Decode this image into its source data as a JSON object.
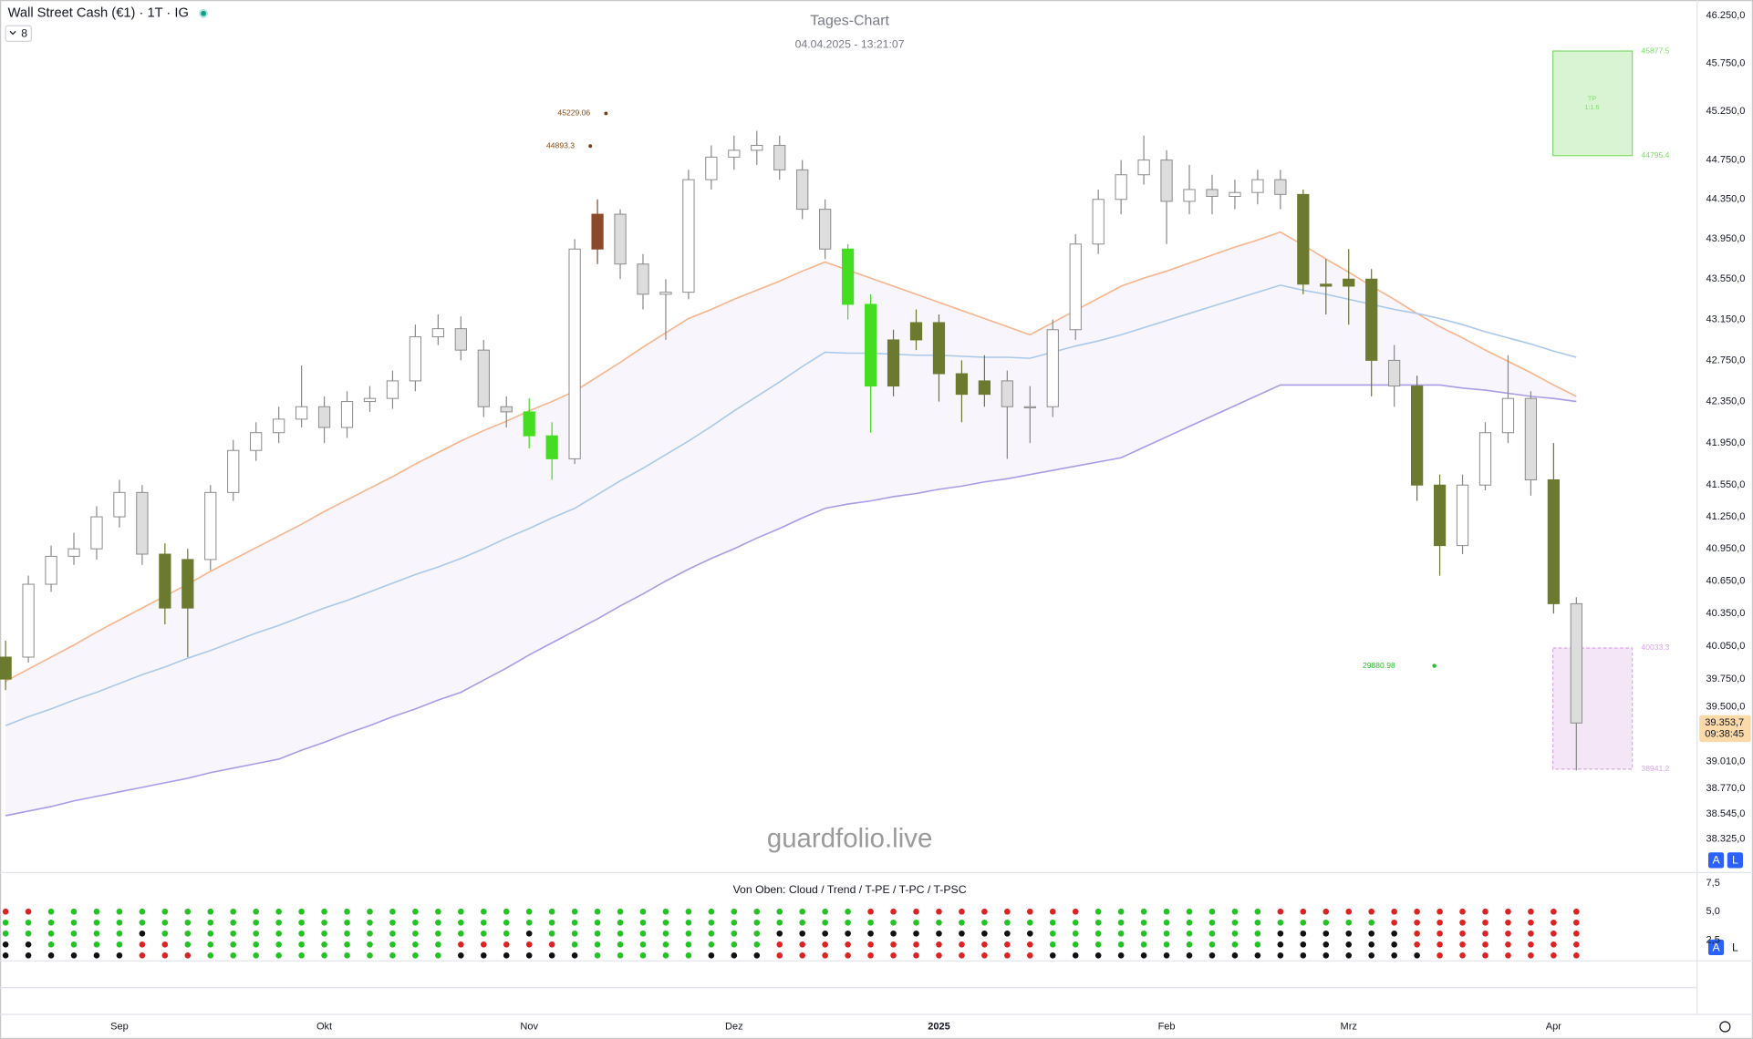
{
  "header": {
    "symbol": "Wall Street Cash (€1) · 1T · IG",
    "indicator_count": 8
  },
  "chart_data": [
    {
      "type": "candlestick",
      "title": "Tages-Chart",
      "subtitle": "04.04.2025 - 13:21:07",
      "watermark": "guardfolio.live",
      "categories": [
        null,
        null,
        null,
        null,
        null,
        "Sep",
        null,
        null,
        null,
        null,
        null,
        null,
        null,
        null,
        "Okt",
        null,
        null,
        null,
        null,
        null,
        null,
        null,
        null,
        "Nov",
        null,
        null,
        null,
        null,
        null,
        null,
        null,
        null,
        "Dez",
        null,
        null,
        null,
        null,
        null,
        null,
        null,
        null,
        "2025",
        null,
        null,
        null,
        null,
        null,
        null,
        null,
        null,
        null,
        "Feb",
        null,
        null,
        null,
        null,
        null,
        null,
        null,
        "Mrz",
        null,
        null,
        null,
        null,
        null,
        null,
        null,
        null,
        "Apr",
        null
      ],
      "open": [
        39750,
        39950,
        40620,
        40880,
        40950,
        41250,
        41480,
        40900,
        40400,
        40850,
        41480,
        41880,
        42050,
        42180,
        42300,
        42100,
        42350,
        42380,
        42550,
        42980,
        43060,
        42850,
        42300,
        42250,
        42020,
        41800,
        43850,
        44200,
        43700,
        43400,
        43420,
        44550,
        44780,
        44850,
        44900,
        44650,
        44250,
        43850,
        43300,
        42500,
        42950,
        43120,
        42620,
        42420,
        42550,
        42300,
        42300,
        43050,
        43900,
        44350,
        44600,
        44750,
        44330,
        44450,
        44380,
        44420,
        44550,
        44400,
        43500,
        43480,
        43550,
        42750,
        42500,
        41550,
        40980,
        41550,
        42050,
        42380,
        41600,
        40440
      ],
      "high": [
        40100,
        40700,
        40980,
        41100,
        41350,
        41600,
        41550,
        41000,
        40950,
        41550,
        41980,
        42150,
        42300,
        42700,
        42400,
        42450,
        42500,
        42650,
        43100,
        43200,
        43180,
        42950,
        42400,
        42380,
        42150,
        43950,
        44350,
        44250,
        43800,
        43550,
        44650,
        44900,
        45000,
        45050,
        45000,
        44750,
        44350,
        43900,
        43400,
        43050,
        43250,
        43200,
        42750,
        42800,
        42650,
        42500,
        43150,
        44000,
        44450,
        44750,
        45000,
        44850,
        44700,
        44600,
        44550,
        44650,
        44650,
        44450,
        43750,
        43850,
        43650,
        42900,
        42600,
        41650,
        41650,
        42150,
        42800,
        42450,
        41950,
        40500
      ],
      "low": [
        39650,
        39900,
        40550,
        40800,
        40850,
        41150,
        40800,
        40250,
        39950,
        40750,
        41400,
        41780,
        41950,
        42100,
        41950,
        42000,
        42250,
        42280,
        42450,
        42900,
        42750,
        42200,
        42100,
        41900,
        41600,
        41750,
        43700,
        43550,
        43250,
        42950,
        43350,
        44450,
        44650,
        44700,
        44550,
        44150,
        43750,
        43150,
        42050,
        42400,
        42850,
        42350,
        42150,
        42300,
        41800,
        41950,
        42200,
        42950,
        43800,
        44200,
        44500,
        43900,
        44200,
        44200,
        44250,
        44300,
        44250,
        43400,
        43200,
        43100,
        42400,
        42300,
        41400,
        40700,
        40900,
        41500,
        41950,
        41450,
        40350,
        38930
      ],
      "close": [
        39950,
        40620,
        40880,
        40950,
        41250,
        41480,
        40900,
        40400,
        40850,
        41480,
        41880,
        42050,
        42180,
        42300,
        42100,
        42350,
        42380,
        42550,
        42980,
        43060,
        42850,
        42300,
        42250,
        42020,
        41800,
        43850,
        44200,
        43700,
        43400,
        43420,
        44550,
        44780,
        44850,
        44900,
        44650,
        44250,
        43850,
        43300,
        42500,
        42950,
        43120,
        42620,
        42420,
        42550,
        42300,
        42300,
        43050,
        43900,
        44350,
        44600,
        44750,
        44330,
        44450,
        44380,
        44420,
        44550,
        44400,
        43500,
        43480,
        43550,
        42750,
        42500,
        41550,
        40980,
        41550,
        42050,
        42380,
        41600,
        40440,
        39353.7
      ],
      "colors": [
        "#6b7a2f",
        "#fff",
        "#fff",
        "#fff",
        "#fff",
        "#fff",
        "#ddd",
        "#6b7a2f",
        "#6b7a2f",
        "#fff",
        "#fff",
        "#fff",
        "#fff",
        "#fff",
        "#ddd",
        "#fff",
        "#fff",
        "#fff",
        "#fff",
        "#fff",
        "#ddd",
        "#ddd",
        "#ddd",
        "#44dd22",
        "#44dd22",
        "#fff",
        "#8b4a2b",
        "#ddd",
        "#ddd",
        "#fff",
        "#fff",
        "#fff",
        "#fff",
        "#fff",
        "#ddd",
        "#ddd",
        "#ddd",
        "#44dd22",
        "#44dd22",
        "#6b7a2f",
        "#6b7a2f",
        "#6b7a2f",
        "#6b7a2f",
        "#6b7a2f",
        "#ddd",
        "#fff",
        "#fff",
        "#fff",
        "#fff",
        "#fff",
        "#fff",
        "#ddd",
        "#fff",
        "#ddd",
        "#fff",
        "#fff",
        "#ddd",
        "#6b7a2f",
        "#6b7a2f",
        "#6b7a2f",
        "#6b7a2f",
        "#ddd",
        "#6b7a2f",
        "#6b7a2f",
        "#fff",
        "#fff",
        "#fff",
        "#ddd",
        "#6b7a2f",
        "#ddd"
      ],
      "series": [
        {
          "color": "#f7b48a",
          "values": [
            39730,
            39840,
            39950,
            40060,
            40180,
            40290,
            40400,
            40510,
            40620,
            40740,
            40850,
            40960,
            41070,
            41180,
            41300,
            41410,
            41520,
            41630,
            41750,
            41860,
            41970,
            42070,
            42160,
            42260,
            42350,
            42450,
            42590,
            42730,
            42880,
            43020,
            43160,
            43250,
            43350,
            43440,
            43530,
            43630,
            43720,
            43640,
            43560,
            43480,
            43400,
            43320,
            43240,
            43160,
            43080,
            43000,
            43120,
            43240,
            43360,
            43480,
            43560,
            43630,
            43710,
            43790,
            43870,
            43940,
            44020,
            43890,
            43750,
            43620,
            43480,
            43350,
            43210,
            43080,
            42970,
            42850,
            42740,
            42630,
            42510,
            42400
          ]
        },
        {
          "color": "#a9c8ea",
          "values": [
            39330,
            39410,
            39480,
            39560,
            39630,
            39710,
            39790,
            39860,
            39940,
            40010,
            40090,
            40170,
            40240,
            40320,
            40400,
            40470,
            40550,
            40630,
            40710,
            40780,
            40860,
            40950,
            41050,
            41140,
            41240,
            41330,
            41460,
            41590,
            41710,
            41840,
            41970,
            42110,
            42260,
            42400,
            42540,
            42690,
            42830,
            42820,
            42820,
            42810,
            42800,
            42800,
            42790,
            42780,
            42780,
            42770,
            42830,
            42890,
            42940,
            43000,
            43070,
            43140,
            43210,
            43280,
            43350,
            43420,
            43490,
            43440,
            43400,
            43350,
            43300,
            43250,
            43210,
            43160,
            43100,
            43030,
            42970,
            42910,
            42840,
            42780
          ]
        },
        {
          "color": "#a99be6",
          "values": [
            38530,
            38570,
            38610,
            38660,
            38700,
            38740,
            38780,
            38820,
            38860,
            38910,
            38950,
            38990,
            39030,
            39110,
            39180,
            39260,
            39330,
            39410,
            39480,
            39560,
            39630,
            39740,
            39850,
            39970,
            40080,
            40190,
            40300,
            40420,
            40530,
            40650,
            40760,
            40860,
            40950,
            41050,
            41140,
            41240,
            41330,
            41370,
            41400,
            41440,
            41470,
            41510,
            41540,
            41580,
            41610,
            41650,
            41690,
            41730,
            41770,
            41810,
            41910,
            42010,
            42110,
            42210,
            42310,
            42410,
            42510,
            42510,
            42510,
            42510,
            42510,
            42510,
            42510,
            42510,
            42480,
            42460,
            42430,
            42400,
            42380,
            42350
          ]
        }
      ],
      "ylim": [
        38033,
        46415
      ],
      "log_scale": true,
      "grid": false,
      "yticks": [
        {
          "value": 46250,
          "label": "46.250,0"
        },
        {
          "value": 45750,
          "label": "45.750,0"
        },
        {
          "value": 45250,
          "label": "45.250,0"
        },
        {
          "value": 44750,
          "label": "44.750,0"
        },
        {
          "value": 44350,
          "label": "44.350,0"
        },
        {
          "value": 43950,
          "label": "43.950,0"
        },
        {
          "value": 43550,
          "label": "43.550,0"
        },
        {
          "value": 43150,
          "label": "43.150,0"
        },
        {
          "value": 42750,
          "label": "42.750,0"
        },
        {
          "value": 42350,
          "label": "42.350,0"
        },
        {
          "value": 41950,
          "label": "41.950,0"
        },
        {
          "value": 41550,
          "label": "41.550,0"
        },
        {
          "value": 41250,
          "label": "41.250,0"
        },
        {
          "value": 40950,
          "label": "40.950,0"
        },
        {
          "value": 40650,
          "label": "40.650,0"
        },
        {
          "value": 40350,
          "label": "40.350,0"
        },
        {
          "value": 40050,
          "label": "40.050,0"
        },
        {
          "value": 39750,
          "label": "39.750,0"
        },
        {
          "value": 39500,
          "label": "39.500,0"
        },
        {
          "value": 39010,
          "label": "39.010,0"
        },
        {
          "value": 38770,
          "label": "38.770,0"
        },
        {
          "value": 38545,
          "label": "38.545,0"
        },
        {
          "value": 38325,
          "label": "38.325,0"
        }
      ],
      "price_marks": [
        45229.06,
        44893.3
      ],
      "signal_label": 29880.98,
      "target_box": {
        "label": "TP",
        "ratio": "1:1.6",
        "top": 45877.5,
        "bottom": 44795.4,
        "color": "#7ddc6a"
      },
      "stop_box": {
        "top": 40033.3,
        "bottom": 38941.2,
        "color": "#d9a8e6"
      },
      "last_price_label": "39.353,7",
      "countdown": "09:38:45",
      "buttons": [
        "A",
        "L"
      ]
    },
    {
      "type": "dot-matrix",
      "title": "Von Oben: Cloud / Trend / T-PE / T-PC / T-PSC",
      "state_colors": {
        "1": "#22c322",
        "0": "#111111",
        "-1": "#dd2222"
      },
      "rows": [
        [
          -1,
          -1,
          1,
          1,
          1,
          1,
          1,
          1,
          1,
          1,
          1,
          1,
          1,
          1,
          1,
          1,
          1,
          1,
          1,
          1,
          1,
          1,
          1,
          1,
          1,
          1,
          1,
          1,
          1,
          1,
          1,
          1,
          1,
          1,
          1,
          1,
          1,
          1,
          -1,
          -1,
          -1,
          -1,
          -1,
          -1,
          -1,
          -1,
          -1,
          -1,
          1,
          1,
          1,
          1,
          1,
          1,
          1,
          1,
          -1,
          -1,
          -1,
          -1,
          -1,
          -1,
          -1,
          -1,
          -1,
          -1,
          -1,
          -1,
          -1,
          -1
        ],
        [
          1,
          1,
          1,
          1,
          1,
          1,
          1,
          1,
          1,
          1,
          1,
          1,
          1,
          1,
          1,
          1,
          1,
          1,
          1,
          1,
          1,
          1,
          1,
          1,
          1,
          1,
          1,
          1,
          1,
          1,
          1,
          1,
          1,
          1,
          1,
          1,
          1,
          1,
          1,
          1,
          1,
          1,
          1,
          1,
          1,
          1,
          1,
          1,
          1,
          1,
          1,
          1,
          1,
          1,
          1,
          1,
          1,
          1,
          1,
          1,
          1,
          -1,
          -1,
          -1,
          -1,
          -1,
          -1,
          -1,
          -1,
          -1
        ],
        [
          1,
          1,
          1,
          1,
          1,
          1,
          0,
          1,
          1,
          1,
          1,
          1,
          1,
          1,
          1,
          1,
          1,
          1,
          1,
          1,
          1,
          1,
          1,
          0,
          1,
          1,
          1,
          1,
          1,
          1,
          1,
          1,
          1,
          1,
          0,
          0,
          0,
          0,
          0,
          0,
          0,
          0,
          0,
          0,
          0,
          0,
          1,
          1,
          1,
          1,
          1,
          1,
          1,
          1,
          1,
          1,
          0,
          0,
          0,
          0,
          0,
          0,
          -1,
          -1,
          -1,
          -1,
          -1,
          -1,
          -1,
          -1
        ],
        [
          0,
          0,
          1,
          1,
          1,
          1,
          -1,
          -1,
          1,
          1,
          1,
          1,
          1,
          1,
          1,
          1,
          1,
          1,
          1,
          1,
          -1,
          -1,
          -1,
          -1,
          -1,
          1,
          1,
          1,
          1,
          1,
          1,
          1,
          1,
          1,
          -1,
          -1,
          -1,
          -1,
          -1,
          -1,
          -1,
          -1,
          -1,
          -1,
          -1,
          -1,
          1,
          1,
          1,
          1,
          1,
          1,
          1,
          1,
          1,
          1,
          0,
          0,
          0,
          0,
          0,
          0,
          -1,
          -1,
          -1,
          -1,
          -1,
          -1,
          -1,
          -1
        ],
        [
          0,
          0,
          0,
          0,
          0,
          0,
          -1,
          -1,
          -1,
          1,
          1,
          1,
          1,
          1,
          1,
          1,
          1,
          1,
          1,
          1,
          0,
          0,
          0,
          0,
          0,
          0,
          1,
          1,
          1,
          1,
          1,
          0,
          0,
          0,
          -1,
          -1,
          -1,
          -1,
          -1,
          -1,
          -1,
          -1,
          -1,
          -1,
          -1,
          -1,
          0,
          0,
          0,
          0,
          0,
          0,
          0,
          0,
          0,
          0,
          0,
          0,
          0,
          0,
          0,
          0,
          0,
          -1,
          -1,
          -1,
          -1,
          -1,
          -1,
          -1
        ]
      ],
      "ylim": [
        0,
        8.33
      ],
      "yticks": [
        {
          "value": 7.5,
          "label": "7,5"
        },
        {
          "value": 5,
          "label": "5,0"
        },
        {
          "value": 2.5,
          "label": "2,5"
        }
      ],
      "buttons": [
        "A",
        "L"
      ]
    }
  ]
}
